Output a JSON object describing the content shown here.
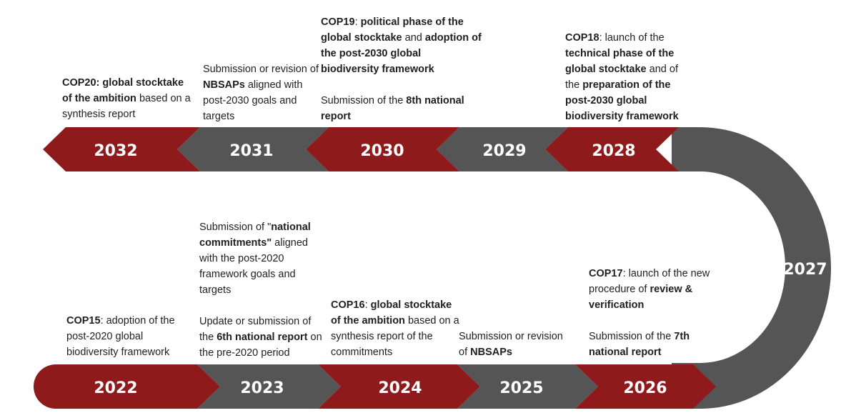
{
  "colors": {
    "red": "#8e1a1c",
    "gray": "#555555"
  },
  "years": {
    "y2022": "2022",
    "y2023": "2023",
    "y2024": "2024",
    "y2025": "2025",
    "y2026": "2026",
    "y2027": "2027",
    "y2028": "2028",
    "y2029": "2029",
    "y2030": "2030",
    "y2031": "2031",
    "y2032": "2032"
  },
  "notes": {
    "n2032": {
      "b1": "COP20: global stocktake of the ambition",
      "t1": " based on a synthesis report"
    },
    "n2031": {
      "t1": "Submission or revision of ",
      "b1": "NBSAPs",
      "t2": " aligned with post-2030 goals and targets"
    },
    "n2030": {
      "p1": {
        "b1": "COP19",
        "t1": ": ",
        "b2": "political phase of the global stocktake",
        "t2": " and ",
        "b3": "adoption of the post-2030 global biodiversity framework"
      },
      "p2": {
        "t1": "Submission of the ",
        "b1": "8th national report"
      }
    },
    "n2028": {
      "b1": "COP18",
      "t1": ": launch of the ",
      "b2": "technical phase of the global stocktake",
      "t2": " and of the ",
      "b3": "preparation of the post-2030 global biodiversity framework"
    },
    "n2022": {
      "b1": "COP15",
      "t1": ": adoption of the post-2020 global biodiversity framework"
    },
    "n2023": {
      "p1": {
        "t1": "Submission of \"",
        "b1": "national commitments\"",
        "t2": " aligned with the post-2020 framework goals and targets"
      },
      "p2": {
        "t1": "Update or submission of the ",
        "b1": "6th national report",
        "t2": " on the pre-2020 period"
      }
    },
    "n2024": {
      "b1": "COP16",
      "t1": ": ",
      "b2": "global stocktake of the ambition",
      "t2": " based on a synthesis report of the commitments"
    },
    "n2025": {
      "t1": "Submission or revision of ",
      "b1": "NBSAPs"
    },
    "n2026": {
      "p1": {
        "b1": "COP17",
        "t1": ": launch of the new procedure of ",
        "b2": "review & verification"
      },
      "p2": {
        "t1": "Submission of the ",
        "b1": "7th national report"
      }
    }
  }
}
